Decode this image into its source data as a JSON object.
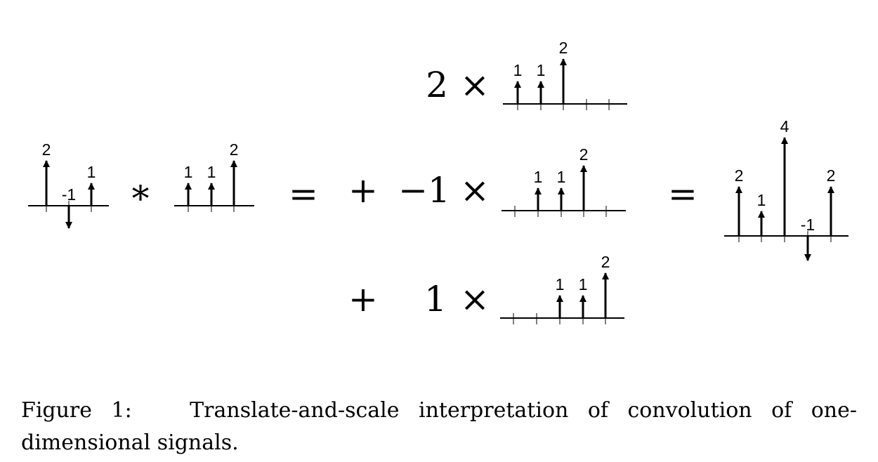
{
  "figure": {
    "caption_prefix": "Figure 1:",
    "caption_line1": "Translate-and-scale interpretation of convolution of one-",
    "caption_line2": "dimensional signals."
  },
  "operators": {
    "convolve": "∗",
    "equals": "=",
    "plus": "+",
    "times": "×"
  },
  "signals": {
    "input_f": [
      {
        "n": 0,
        "value": 2,
        "label": "2"
      },
      {
        "n": 1,
        "value": -1,
        "label": "-1"
      },
      {
        "n": 2,
        "value": 1,
        "label": "1"
      }
    ],
    "kernel_g": [
      {
        "n": 0,
        "value": 1,
        "label": "1"
      },
      {
        "n": 1,
        "value": 1,
        "label": "1"
      },
      {
        "n": 2,
        "value": 2,
        "label": "2"
      }
    ],
    "terms": [
      {
        "sign": "",
        "scale": "2",
        "shift": 0
      },
      {
        "sign": "+",
        "scale": "−1",
        "shift": 1
      },
      {
        "sign": "+",
        "scale": "1",
        "shift": 2
      }
    ],
    "result": [
      {
        "n": 0,
        "value": 2,
        "label": "2"
      },
      {
        "n": 1,
        "value": 1,
        "label": "1"
      },
      {
        "n": 2,
        "value": 4,
        "label": "4"
      },
      {
        "n": 3,
        "value": -1,
        "label": "-1"
      },
      {
        "n": 4,
        "value": 2,
        "label": "2"
      }
    ]
  }
}
